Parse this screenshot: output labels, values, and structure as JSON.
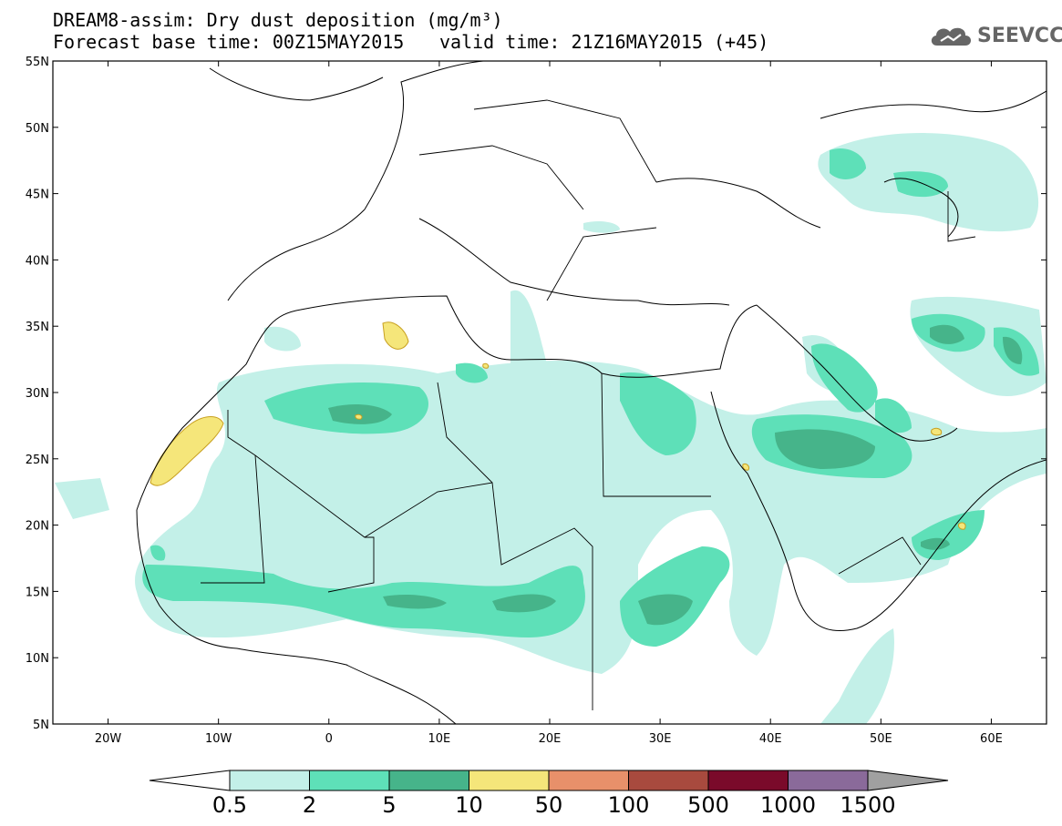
{
  "header": {
    "title_line1": "DREAM8-assim: Dry dust deposition (mg/m³)",
    "title_line2_left": "Forecast base time: 00Z15MAY2015",
    "title_line2_right": "valid time: 21Z16MAY2015 (+45)",
    "logo_text": "SEEVCCC",
    "logo_icon": "cloud-icon"
  },
  "axes": {
    "lat_labels": [
      "55N",
      "50N",
      "45N",
      "40N",
      "35N",
      "30N",
      "25N",
      "20N",
      "15N",
      "10N",
      "5N"
    ],
    "lon_labels": [
      "20W",
      "10W",
      "0",
      "10E",
      "20E",
      "30E",
      "40E",
      "50E",
      "60E"
    ],
    "lat_values": [
      55,
      50,
      45,
      40,
      35,
      30,
      25,
      20,
      15,
      10,
      5
    ],
    "lon_values": [
      -20,
      -10,
      0,
      10,
      20,
      30,
      40,
      50,
      60
    ],
    "lon_range": [
      -25,
      65
    ],
    "lat_range": [
      5,
      55
    ]
  },
  "colorbar": {
    "labels": [
      "0.5",
      "2",
      "5",
      "10",
      "50",
      "100",
      "500",
      "1000",
      "1500"
    ],
    "colors": [
      "#c3f0e8",
      "#5ee0b8",
      "#46b48a",
      "#f5e67a",
      "#e8906a",
      "#a84a3e",
      "#7a0a2a",
      "#8a6a9a"
    ],
    "under_color": "#ffffff",
    "over_color": "#a0a0a0"
  },
  "map": {
    "background": "#ffffff",
    "border_color": "#000000",
    "projection": "cylindrical-equidistant"
  }
}
